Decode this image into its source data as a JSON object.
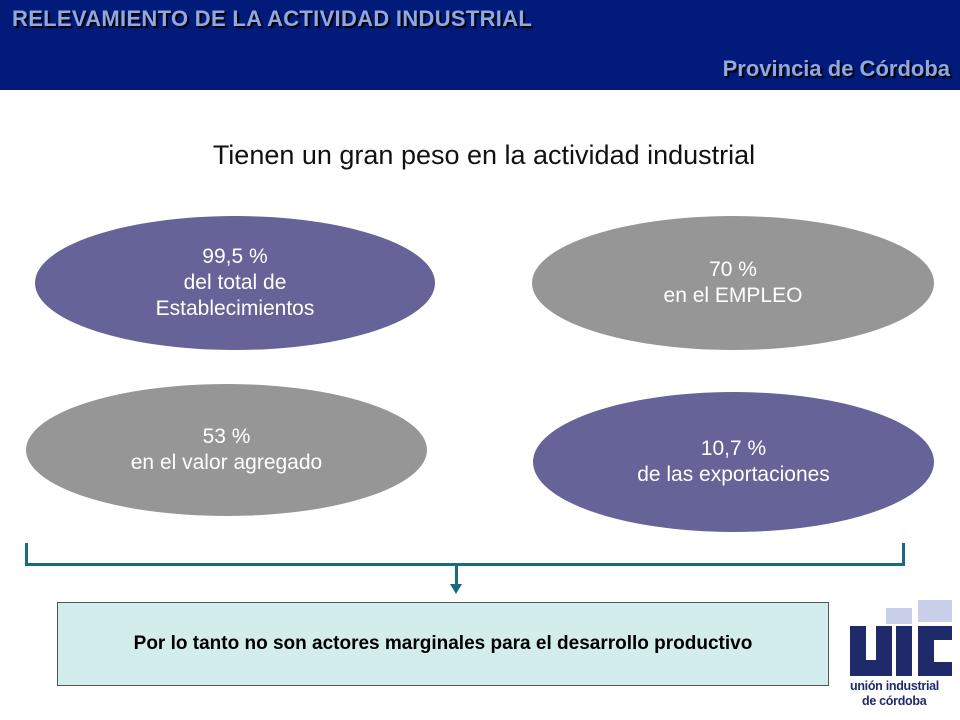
{
  "header": {
    "title": "RELEVAMIENTO DE LA ACTIVIDAD INDUSTRIAL",
    "subtitle": "Provincia de Córdoba"
  },
  "main_title": "Tienen un gran peso en la actividad industrial",
  "stats": [
    {
      "value": "99,5 %",
      "line2": "del total de",
      "line3": "Establecimientos",
      "color": "#656397"
    },
    {
      "value": "70 %",
      "line2": "en el EMPLEO",
      "color": "#969696"
    },
    {
      "value": "53 %",
      "line2": "en el valor agregado",
      "color": "#969696"
    },
    {
      "value": "10,7 %",
      "line2": "de las exportaciones",
      "color": "#656397"
    }
  ],
  "conclusion": "Por lo tanto no son actores marginales para el desarrollo productivo",
  "logo": {
    "name": "uic-logo",
    "mark": "uic",
    "line1": "unión industrial",
    "line2": "de córdoba",
    "color": "#1f2a6b"
  },
  "colors": {
    "header_bg": "#021a7a",
    "header_text": "#8fa8e0",
    "accent_purple": "#656397",
    "accent_gray": "#969696",
    "conclusion_bg": "#d3ecec",
    "bracket": "#1a6a80"
  }
}
